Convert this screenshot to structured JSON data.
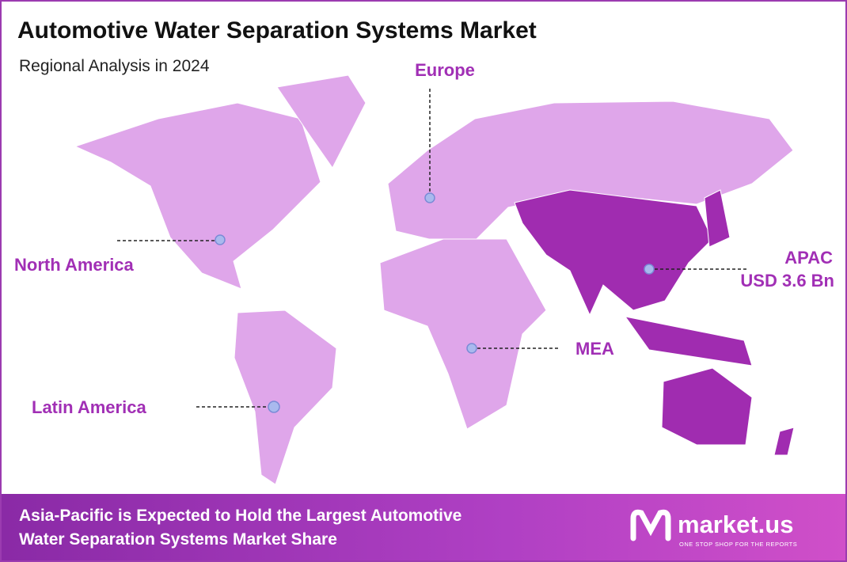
{
  "header": {
    "title": "Automotive Water Separation Systems Market",
    "subtitle": "Regional Analysis in 2024"
  },
  "regions": [
    {
      "label": "Europe"
    },
    {
      "label": "North America"
    },
    {
      "label": "APAC",
      "value": "USD 3.6 Bn"
    },
    {
      "label": "MEA"
    },
    {
      "label": "Latin America"
    }
  ],
  "footer": {
    "text_lines": [
      "Asia-Pacific is Expected to Hold the Largest Automotive",
      "Water Separation Systems Market Share"
    ],
    "brand": "market.us",
    "tagline": "ONE STOP SHOP FOR THE REPORTS"
  }
}
